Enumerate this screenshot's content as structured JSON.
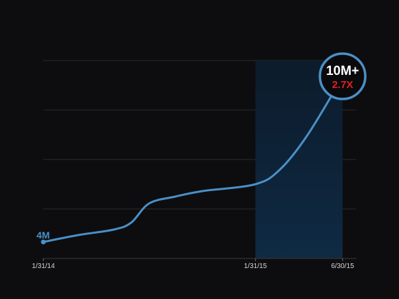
{
  "chart_data": {
    "type": "line",
    "title": "",
    "xlabel": "",
    "ylabel": "",
    "x_ticks": [
      "1/31/14",
      "1/31/15",
      "6/30/15"
    ],
    "ylim": [
      3.4,
      10.6
    ],
    "grid": true,
    "series": [
      {
        "values": [
          {
            "x": "2014-01-31",
            "y": 4.0
          },
          {
            "x": "2014-04-01",
            "y": 4.25
          },
          {
            "x": "2014-06-01",
            "y": 4.45
          },
          {
            "x": "2014-07-01",
            "y": 4.7
          },
          {
            "x": "2014-08-01",
            "y": 5.4
          },
          {
            "x": "2014-09-15",
            "y": 5.65
          },
          {
            "x": "2014-11-01",
            "y": 5.85
          },
          {
            "x": "2015-01-31",
            "y": 6.1
          },
          {
            "x": "2015-03-15",
            "y": 6.65
          },
          {
            "x": "2015-05-01",
            "y": 7.9
          },
          {
            "x": "2015-06-30",
            "y": 10.0
          }
        ]
      }
    ],
    "highlight_range": [
      "2015-01-31",
      "2015-06-30"
    ],
    "annotations": {
      "start_label": "4M",
      "end_label": "10M+",
      "end_sublabel": "2.7X"
    },
    "colors": {
      "line": "#4a90c8",
      "highlight": "#0e2438",
      "grid": "#2a2a2e",
      "badge_fill": "#0a0a0c",
      "badge_sub": "#e02020"
    }
  }
}
